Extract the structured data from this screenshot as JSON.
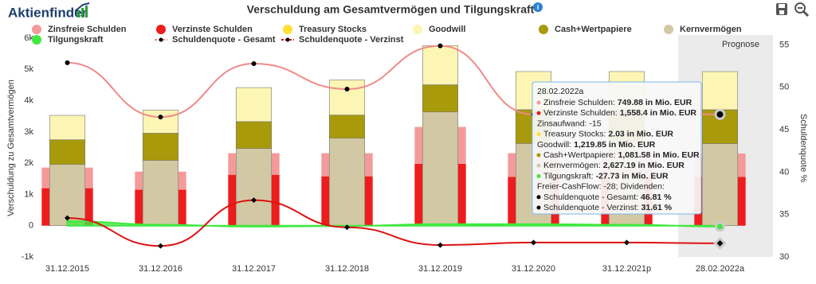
{
  "brand": "Aktienfinder",
  "chart_data": {
    "type": "bar",
    "title": "Verschuldung am Gesamtvermögen und Tilgungskraft",
    "y_label": "Verschuldung zu Gesamtvermögen",
    "y2_label": "Schuldenquote %",
    "forecast_label": "Prognose",
    "categories": [
      "31.12.2015",
      "31.12.2016",
      "31.12.2017",
      "31.12.2018",
      "31.12.2019",
      "31.12.2020",
      "31.12.2021p",
      "28.02.2022a"
    ],
    "ylim": [
      -1000,
      6000
    ],
    "yticks": [
      {
        "value": -1000,
        "label": "-1k"
      },
      0,
      {
        "value": 1000,
        "label": "1k"
      },
      {
        "value": 2000,
        "label": "2k"
      },
      {
        "value": 3000,
        "label": "3k"
      },
      {
        "value": 4000,
        "label": "4k"
      },
      {
        "value": 5000,
        "label": "5k"
      },
      {
        "value": 6000,
        "label": "6k"
      }
    ],
    "y2lim": [
      30,
      55.8
    ],
    "y2ticks": [
      30,
      35,
      40,
      45,
      50,
      55
    ],
    "series": [
      {
        "name": "Zinsfreie Schulden",
        "type": "bar",
        "color": "#f59a9a",
        "values": [
          660,
          580,
          690,
          740,
          1180,
          760,
          750,
          749.88
        ]
      },
      {
        "name": "Verzinste Schulden",
        "type": "bar",
        "color": "#ee1c1c",
        "values": [
          1200,
          1150,
          1630,
          1580,
          1980,
          1560,
          1560,
          1558.4
        ]
      },
      {
        "name": "Treasury Stocks",
        "type": "bar",
        "color": "#ffe033",
        "values": [
          0,
          0,
          0,
          0,
          0,
          2.03,
          2.03,
          2.03
        ]
      },
      {
        "name": "Goodwill",
        "type": "bar",
        "color": "#fcf5b4",
        "values": [
          780,
          740,
          1090,
          1120,
          1250,
          1220,
          1220,
          1219.85
        ]
      },
      {
        "name": "Cash+Wertpapiere",
        "type": "bar",
        "color": "#a99a0b",
        "values": [
          790,
          870,
          860,
          740,
          870,
          1080,
          1080,
          1081.58
        ]
      },
      {
        "name": "Kernvermögen",
        "type": "bar",
        "color": "#d3c8a4",
        "values": [
          1960,
          2090,
          2470,
          2800,
          3640,
          2630,
          2630,
          2627.19
        ]
      },
      {
        "name": "Tilgungskraft",
        "type": "area",
        "color": "#3fe83f",
        "values": [
          150,
          30,
          -30,
          -10,
          50,
          50,
          30,
          -27.73
        ]
      },
      {
        "name": "Schuldenquote - Gesamt",
        "type": "line",
        "axis": "y2",
        "color": "#f08a8a",
        "marker": "circle",
        "values": [
          52.9,
          46.5,
          52.8,
          49.8,
          54.9,
          46.8,
          46.9,
          46.81
        ]
      },
      {
        "name": "Schuldenquote - Verzinst",
        "type": "line",
        "axis": "y2",
        "color": "#dd1111",
        "marker": "diamond",
        "values": [
          34.6,
          31.3,
          36.7,
          33.5,
          31.4,
          31.7,
          31.7,
          31.61
        ]
      }
    ]
  },
  "tooltip": {
    "title": "28.02.2022a",
    "rows": [
      {
        "color": "#f59a9a",
        "label": "Zinsfreie Schulden: ",
        "value": "749.88 in Mio. EUR"
      },
      {
        "color": "#ee1c1c",
        "label": "Verzinste Schulden: ",
        "value": "1,558.4 in Mio. EUR"
      },
      {
        "label": "Zinsaufwand: -15"
      },
      {
        "color": "#ffe033",
        "label": "Treasury Stocks: ",
        "value": "2.03 in Mio. EUR"
      },
      {
        "label": "Goodwill: ",
        "value": "1,219.85 in Mio. EUR"
      },
      {
        "color": "#a99a0b",
        "label": "Cash+Wertpapiere: ",
        "value": "1,081.58 in Mio. EUR"
      },
      {
        "color": "#d3c8a4",
        "label": "Kernvermögen: ",
        "value": "2,627.19 in Mio. EUR"
      },
      {
        "color": "#3fe83f",
        "label": "Tilgungskraft: ",
        "value": "-27.73 in Mio. EUR"
      },
      {
        "label": "Freier-CashFlow: -28; Dividenden:"
      },
      {
        "color": "#000000",
        "label": "Schuldenquote - Gesamt: ",
        "value": "46.81 %"
      },
      {
        "color": "#000000",
        "label": "Schuldenquote - Verzinst: ",
        "value": "31.61 %"
      }
    ]
  }
}
